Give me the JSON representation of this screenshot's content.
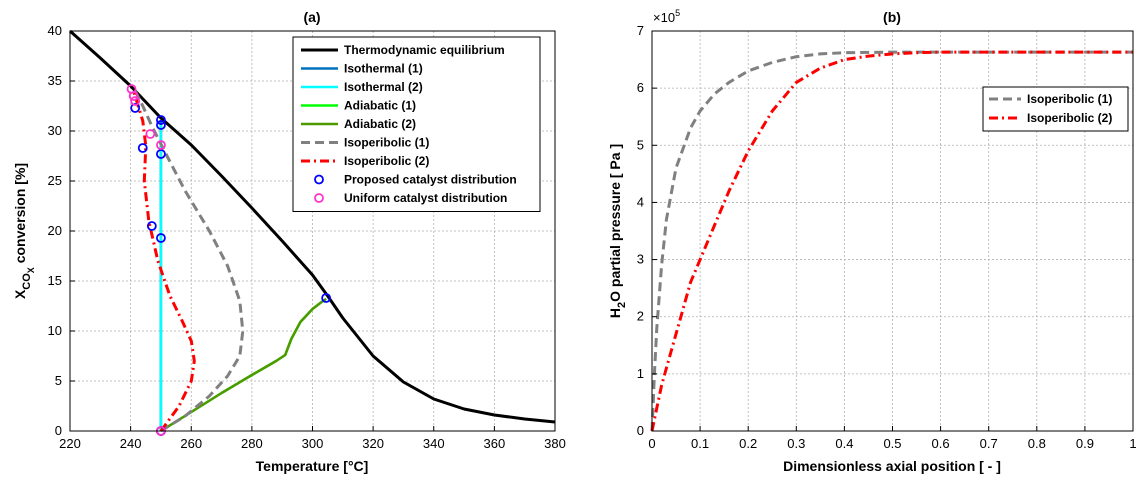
{
  "chart_data": [
    {
      "type": "line",
      "title": "(a)",
      "xlabel": "Temperature [°C]",
      "ylabel_parts": {
        "main": "X",
        "sub": "CO",
        "subsub": "X",
        "rest": " conversion [%]"
      },
      "xlim": [
        220,
        380
      ],
      "ylim": [
        0,
        40
      ],
      "xticks": [
        220,
        240,
        260,
        280,
        300,
        320,
        340,
        360,
        380
      ],
      "yticks": [
        0,
        5,
        10,
        15,
        20,
        25,
        30,
        35,
        40
      ],
      "grid": true,
      "legend_position": "top-right",
      "series": [
        {
          "name": "Thermodynamic equilibrium",
          "color": "#000000",
          "style": "solid",
          "width": 3,
          "x": [
            220,
            230,
            240,
            250,
            260,
            270,
            280,
            290,
            300,
            305,
            310,
            320,
            330,
            340,
            350,
            360,
            370,
            380
          ],
          "y": [
            40,
            37.3,
            34.5,
            31.3,
            28.6,
            25.5,
            22.3,
            19.0,
            15.6,
            13.5,
            11.3,
            7.5,
            4.9,
            3.2,
            2.2,
            1.6,
            1.2,
            0.9
          ]
        },
        {
          "name": "Isothermal (1)",
          "color": "#0072BD",
          "style": "solid",
          "width": 2.5,
          "x": [
            250,
            250
          ],
          "y": [
            0,
            31.1
          ]
        },
        {
          "name": "Isothermal (2)",
          "color": "#00FFFF",
          "style": "solid",
          "width": 2.5,
          "x": [
            250,
            250
          ],
          "y": [
            0,
            30.6
          ]
        },
        {
          "name": "Adiabatic (1)",
          "color": "#00FF00",
          "style": "solid",
          "width": 2.5,
          "x": [
            250,
            260,
            270,
            280,
            288,
            291,
            293,
            296,
            300,
            303,
            304.5
          ],
          "y": [
            0,
            1.9,
            3.8,
            5.6,
            7.0,
            7.6,
            9.2,
            10.9,
            12.2,
            12.9,
            13.2
          ]
        },
        {
          "name": "Adiabatic (2)",
          "color": "#4C9900",
          "style": "solid",
          "width": 2.5,
          "x": [
            250,
            260,
            270,
            280,
            288,
            291,
            293,
            296,
            300,
            303,
            304.5
          ],
          "y": [
            0,
            1.9,
            3.8,
            5.6,
            7.0,
            7.6,
            9.2,
            10.9,
            12.2,
            12.9,
            13.2
          ]
        },
        {
          "name": "Isoperibolic (1)",
          "color": "#808080",
          "style": "dashed",
          "width": 3,
          "x": [
            250,
            258,
            266,
            272,
            276,
            277,
            276,
            272,
            266,
            258,
            252,
            247,
            244,
            241.5
          ],
          "y": [
            0,
            1.5,
            3.5,
            5.5,
            7.5,
            10,
            13,
            16.5,
            20,
            24,
            27.5,
            30.5,
            32.5,
            34
          ]
        },
        {
          "name": "Isoperibolic (2)",
          "color": "#FF0000",
          "style": "dashdot",
          "width": 3,
          "x": [
            250,
            256,
            260,
            261,
            260,
            257,
            253,
            249,
            246,
            244.5,
            245,
            244,
            242,
            241
          ],
          "y": [
            0,
            2.5,
            5,
            7,
            9,
            11,
            13.5,
            17,
            21,
            25,
            28.5,
            31,
            33,
            34
          ]
        }
      ],
      "markers": [
        {
          "name": "Proposed catalyst distribution",
          "color": "#0000FF",
          "x": [
            250,
            304.5,
            250,
            250,
            250,
            247,
            244,
            241.5,
            250,
            250
          ],
          "y": [
            0,
            13.3,
            31.1,
            30.6,
            27.7,
            20.5,
            28.3,
            32.3,
            19.3,
            0
          ]
        },
        {
          "name": "Uniform catalyst distribution",
          "color": "#FF33CC",
          "x": [
            240.3,
            241,
            241.5,
            246.5,
            250,
            250
          ],
          "y": [
            34.2,
            33.5,
            33,
            29.7,
            28.6,
            0
          ]
        }
      ]
    },
    {
      "type": "line",
      "title": "(b)",
      "xlabel": "Dimensionless axial position [ - ]",
      "ylabel_parts": {
        "main": "H",
        "sub": "2",
        "rest": "O partial pressure [ Pa ]"
      },
      "xlim": [
        0,
        1
      ],
      "ylim": [
        0,
        7
      ],
      "multiplier": "×10",
      "multiplier_exp": "5",
      "xticks": [
        "0",
        "0.1",
        "0.2",
        "0.3",
        "0.4",
        "0.5",
        "0.6",
        "0.7",
        "0.8",
        "0.9",
        "1"
      ],
      "yticks": [
        "0",
        "1",
        "2",
        "3",
        "4",
        "5",
        "6",
        "7"
      ],
      "grid": true,
      "legend_position": "right",
      "series": [
        {
          "name": "Isoperibolic (1)",
          "color": "#808080",
          "style": "dashed",
          "width": 3,
          "x": [
            0,
            0.005,
            0.01,
            0.02,
            0.03,
            0.05,
            0.08,
            0.1,
            0.13,
            0.16,
            0.2,
            0.25,
            0.3,
            0.35,
            0.4,
            0.5,
            0.6,
            0.8,
            1.0
          ],
          "y": [
            0,
            1.0,
            1.8,
            2.9,
            3.7,
            4.6,
            5.3,
            5.6,
            5.9,
            6.1,
            6.3,
            6.45,
            6.55,
            6.6,
            6.62,
            6.63,
            6.63,
            6.63,
            6.63
          ]
        },
        {
          "name": "Isoperibolic (2)",
          "color": "#FF0000",
          "style": "dashdot",
          "width": 3,
          "x": [
            0,
            0.01,
            0.02,
            0.04,
            0.06,
            0.08,
            0.1,
            0.13,
            0.16,
            0.2,
            0.25,
            0.3,
            0.35,
            0.4,
            0.45,
            0.5,
            0.55,
            0.6,
            0.8,
            1.0
          ],
          "y": [
            0,
            0.4,
            0.8,
            1.4,
            2.0,
            2.6,
            3.0,
            3.6,
            4.2,
            4.9,
            5.6,
            6.1,
            6.35,
            6.5,
            6.56,
            6.6,
            6.62,
            6.63,
            6.63,
            6.63
          ]
        }
      ]
    }
  ]
}
